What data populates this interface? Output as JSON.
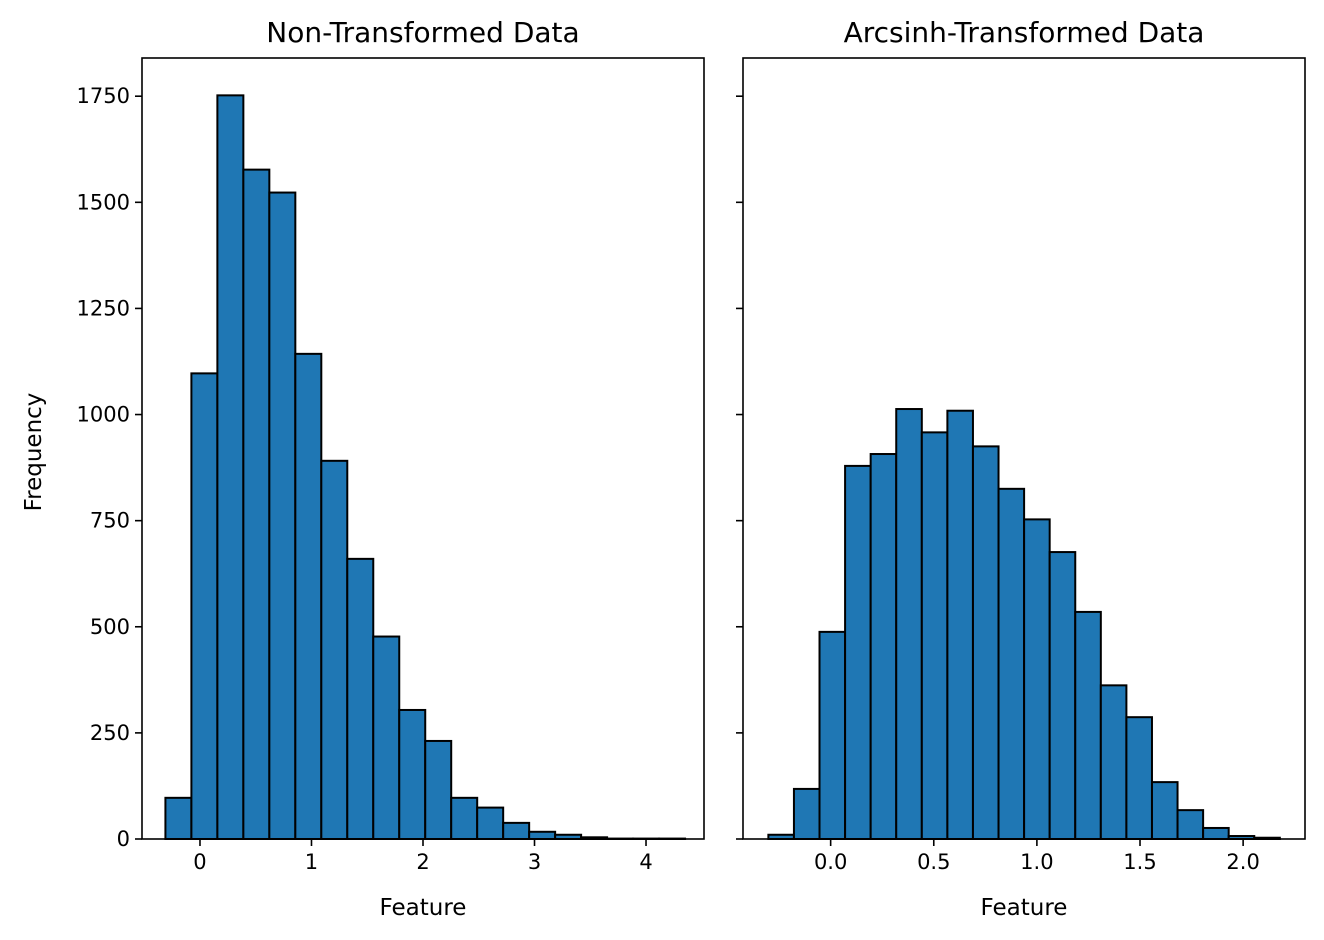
{
  "chart_data": [
    {
      "type": "bar",
      "title": "Non-Transformed Data",
      "xlabel": "Feature",
      "ylabel": "Frequency",
      "xlim": [
        -0.52,
        4.52
      ],
      "ylim": [
        0,
        1840
      ],
      "xticks": [
        0,
        1,
        2,
        3,
        4
      ],
      "xtick_labels": [
        "0",
        "1",
        "2",
        "3",
        "4"
      ],
      "yticks": [
        0,
        250,
        500,
        750,
        1000,
        1250,
        1500,
        1750
      ],
      "ytick_labels": [
        "0",
        "250",
        "500",
        "750",
        "1000",
        "1250",
        "1500",
        "1750"
      ],
      "bin_edges": [
        -0.31,
        -0.077,
        0.156,
        0.389,
        0.622,
        0.855,
        1.088,
        1.321,
        1.554,
        1.787,
        2.02,
        2.253,
        2.486,
        2.719,
        2.952,
        3.185,
        3.418,
        3.651,
        3.884,
        4.117,
        4.35
      ],
      "values": [
        97,
        1097,
        1752,
        1577,
        1523,
        1143,
        891,
        660,
        477,
        304,
        231,
        97,
        74,
        38,
        17,
        10,
        4,
        1,
        1,
        1
      ],
      "bar_color": "#1f77b4",
      "edge_color": "#000000",
      "grid": false
    },
    {
      "type": "bar",
      "title": "Arcsinh-Transformed Data",
      "xlabel": "Feature",
      "ylabel": "",
      "xlim": [
        -0.425,
        2.3
      ],
      "ylim": [
        0,
        1840
      ],
      "xticks": [
        0.0,
        0.5,
        1.0,
        1.5,
        2.0
      ],
      "xtick_labels": [
        "0.0",
        "0.5",
        "1.0",
        "1.5",
        "2.0"
      ],
      "yticks": [
        0,
        250,
        500,
        750,
        1000,
        1250,
        1500,
        1750
      ],
      "ytick_labels": [],
      "bin_edges": [
        -0.302,
        -0.178,
        -0.054,
        0.07,
        0.194,
        0.318,
        0.442,
        0.566,
        0.69,
        0.814,
        0.938,
        1.062,
        1.186,
        1.31,
        1.434,
        1.558,
        1.682,
        1.806,
        1.93,
        2.054,
        2.178
      ],
      "values": [
        10,
        118,
        488,
        879,
        907,
        1013,
        958,
        1009,
        925,
        825,
        753,
        676,
        535,
        362,
        287,
        134,
        68,
        26,
        7,
        3
      ],
      "bar_color": "#1f77b4",
      "edge_color": "#000000",
      "grid": false
    }
  ]
}
